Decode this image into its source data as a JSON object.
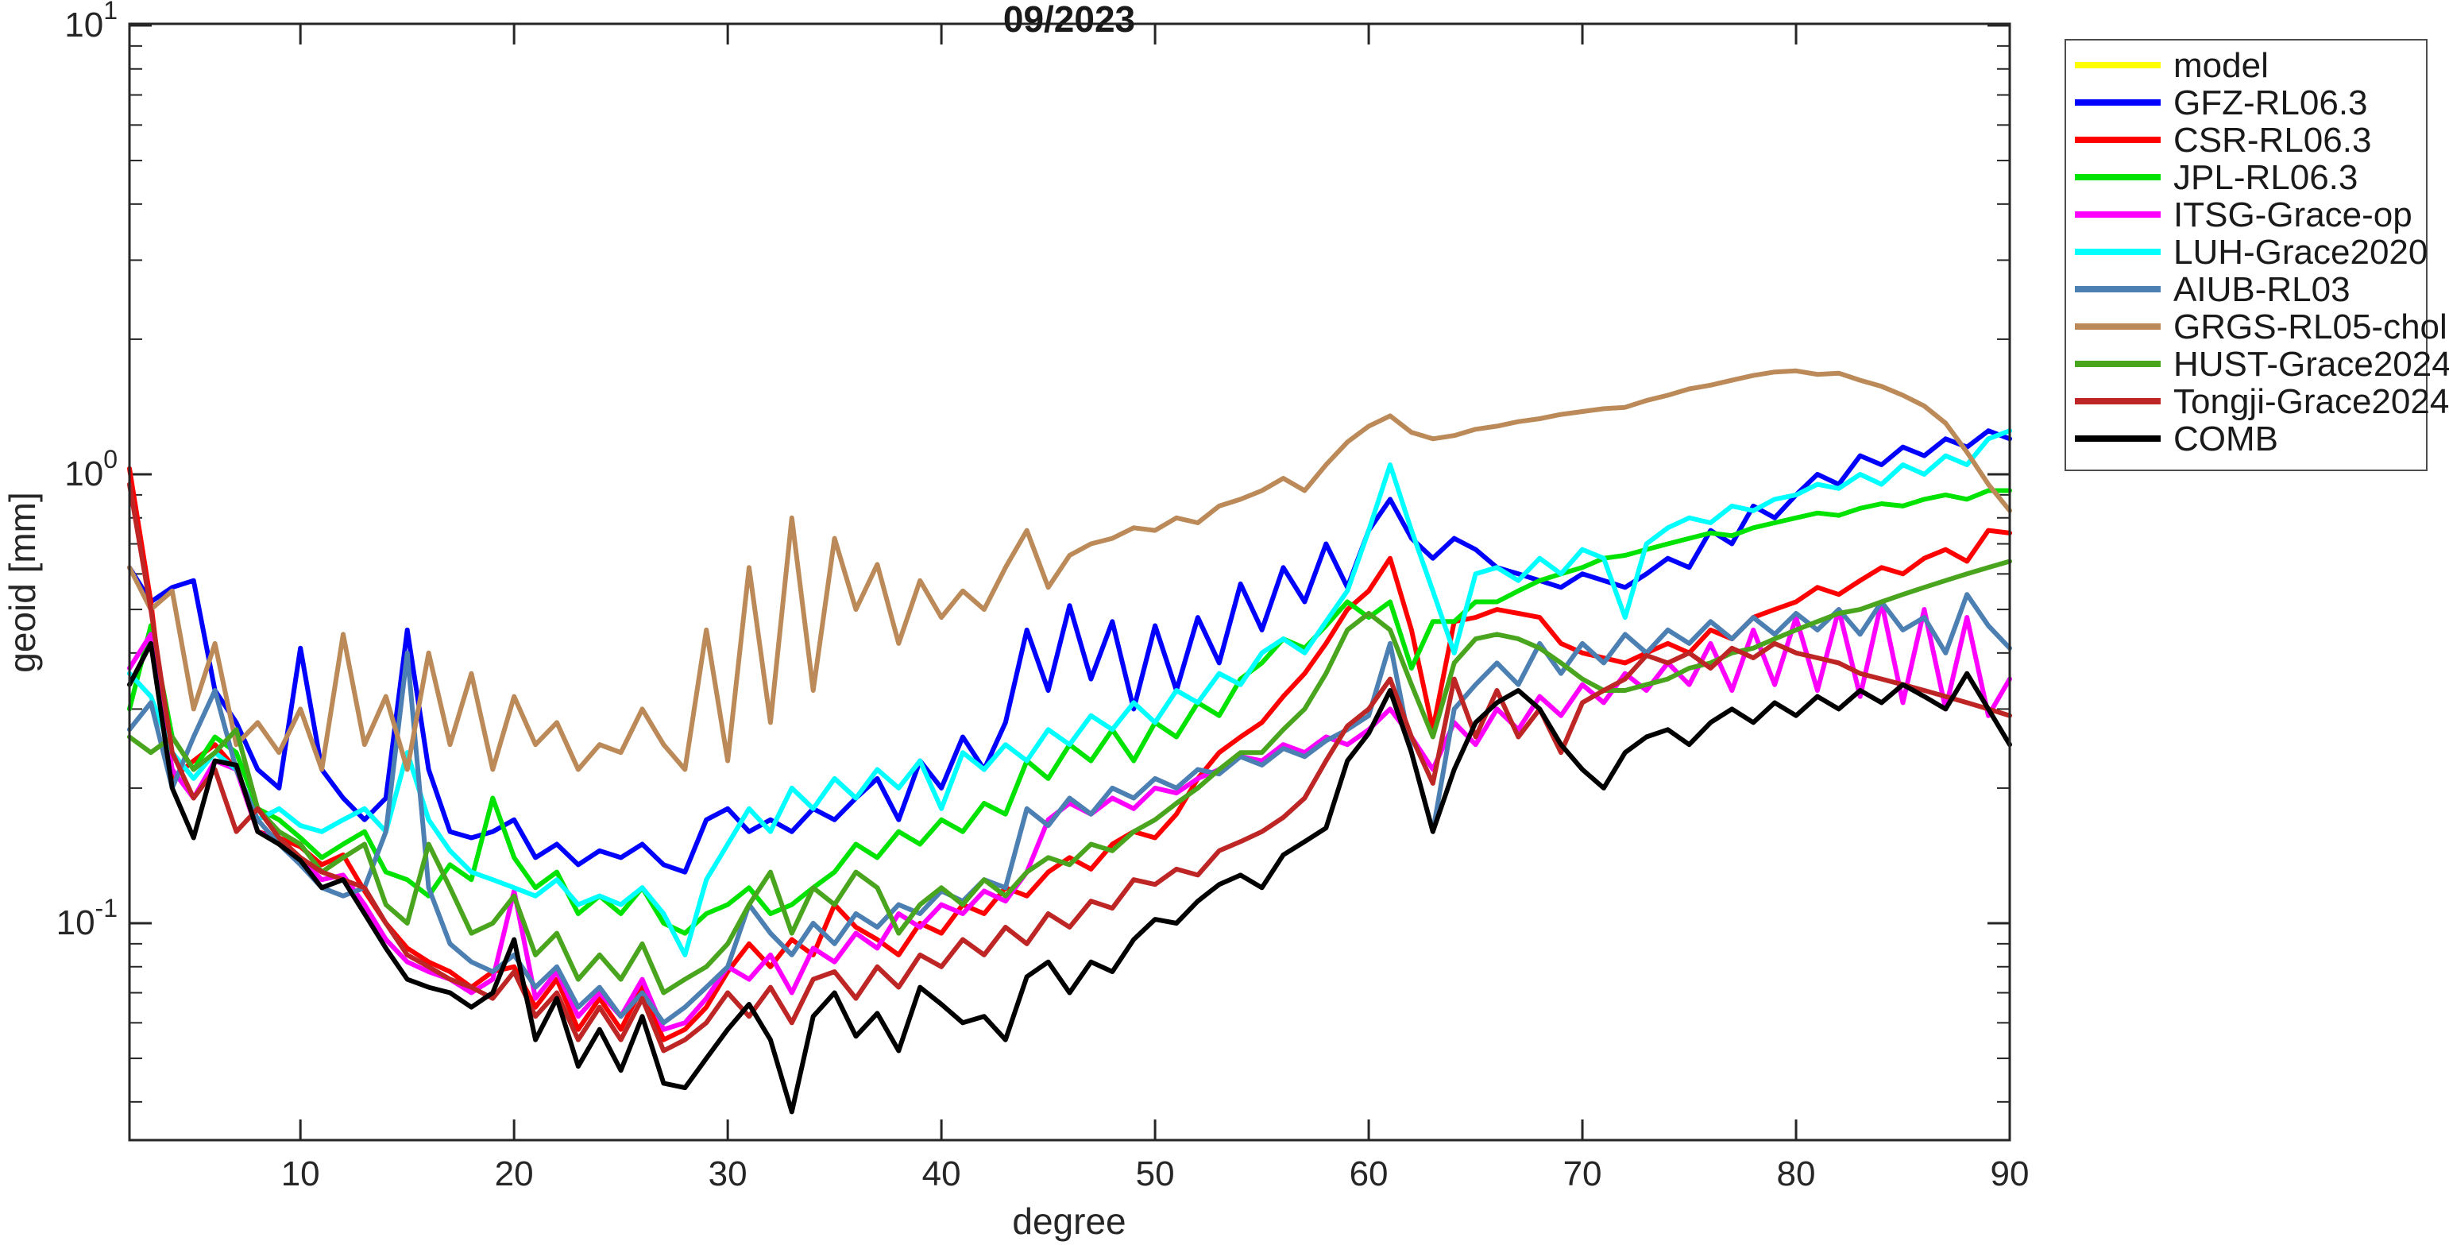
{
  "figure": {
    "title": "09/2023",
    "xlabel": "degree",
    "ylabel": "geoid [mm]"
  },
  "axes": {
    "x_ticks": [
      10,
      20,
      30,
      40,
      50,
      60,
      70,
      80,
      90
    ],
    "xlim": [
      2,
      90
    ],
    "y_scale": "log",
    "ylim": [
      0.033,
      10
    ],
    "y_major_ticks": [
      {
        "value": 10,
        "base": "10",
        "exp": "1"
      },
      {
        "value": 1,
        "base": "10",
        "exp": "0"
      },
      {
        "value": 0.1,
        "base": "10",
        "exp": "-1"
      }
    ],
    "grid": "off",
    "box": "on"
  },
  "legend": {
    "position": "outside-right-top",
    "entries": [
      "model",
      "GFZ-RL06.3",
      "CSR-RL06.3",
      "JPL-RL06.3",
      "ITSG-Grace-op",
      "LUH-Grace2020",
      "AIUB-RL03",
      "GRGS-RL05-chol",
      "HUST-Grace2024",
      "Tongji-Grace2024",
      "COMB"
    ]
  },
  "chart_data": {
    "type": "line",
    "title": "09/2023",
    "xlabel": "degree",
    "ylabel": "geoid [mm]",
    "x_start": 2,
    "x_step": 1,
    "x_end": 90,
    "series": [
      {
        "name": "model",
        "color": "#FFFF00",
        "visible_in_plot": false,
        "values": []
      },
      {
        "name": "GFZ-RL06.3",
        "color": "#0000FF",
        "values": [
          0.62,
          0.52,
          0.56,
          0.58,
          0.33,
          0.28,
          0.22,
          0.2,
          0.41,
          0.22,
          0.19,
          0.17,
          0.19,
          0.45,
          0.22,
          0.16,
          0.155,
          0.16,
          0.17,
          0.14,
          0.15,
          0.135,
          0.145,
          0.14,
          0.15,
          0.135,
          0.13,
          0.17,
          0.18,
          0.16,
          0.17,
          0.16,
          0.18,
          0.17,
          0.19,
          0.21,
          0.17,
          0.23,
          0.2,
          0.26,
          0.22,
          0.28,
          0.45,
          0.33,
          0.51,
          0.35,
          0.47,
          0.3,
          0.46,
          0.33,
          0.48,
          0.38,
          0.57,
          0.45,
          0.62,
          0.52,
          0.7,
          0.56,
          0.75,
          0.88,
          0.72,
          0.65,
          0.72,
          0.68,
          0.62,
          0.6,
          0.58,
          0.56,
          0.6,
          0.58,
          0.56,
          0.6,
          0.65,
          0.62,
          0.75,
          0.7,
          0.85,
          0.8,
          0.9,
          1.0,
          0.95,
          1.1,
          1.05,
          1.15,
          1.1,
          1.2,
          1.15,
          1.25,
          1.2
        ]
      },
      {
        "name": "CSR-RL06.3",
        "color": "#FF0000",
        "values": [
          1.03,
          0.52,
          0.21,
          0.23,
          0.25,
          0.22,
          0.16,
          0.155,
          0.148,
          0.135,
          0.142,
          0.118,
          0.1,
          0.088,
          0.082,
          0.078,
          0.072,
          0.078,
          0.08,
          0.065,
          0.075,
          0.058,
          0.068,
          0.058,
          0.072,
          0.055,
          0.058,
          0.065,
          0.078,
          0.09,
          0.08,
          0.092,
          0.085,
          0.11,
          0.098,
          0.092,
          0.085,
          0.1,
          0.095,
          0.11,
          0.105,
          0.12,
          0.115,
          0.13,
          0.14,
          0.132,
          0.15,
          0.16,
          0.155,
          0.175,
          0.21,
          0.24,
          0.26,
          0.28,
          0.32,
          0.36,
          0.42,
          0.5,
          0.55,
          0.65,
          0.45,
          0.27,
          0.47,
          0.48,
          0.5,
          0.49,
          0.48,
          0.42,
          0.4,
          0.39,
          0.38,
          0.4,
          0.42,
          0.4,
          0.45,
          0.43,
          0.48,
          0.5,
          0.52,
          0.56,
          0.54,
          0.58,
          0.62,
          0.6,
          0.65,
          0.68,
          0.64,
          0.75,
          0.74
        ]
      },
      {
        "name": "JPL-RL06.3",
        "color": "#00E300",
        "values": [
          0.3,
          0.46,
          0.26,
          0.22,
          0.26,
          0.24,
          0.18,
          0.17,
          0.155,
          0.14,
          0.15,
          0.16,
          0.13,
          0.125,
          0.115,
          0.135,
          0.125,
          0.19,
          0.14,
          0.12,
          0.13,
          0.105,
          0.115,
          0.105,
          0.12,
          0.1,
          0.095,
          0.105,
          0.11,
          0.12,
          0.105,
          0.11,
          0.12,
          0.13,
          0.15,
          0.14,
          0.16,
          0.15,
          0.17,
          0.16,
          0.185,
          0.175,
          0.23,
          0.21,
          0.25,
          0.23,
          0.27,
          0.23,
          0.28,
          0.26,
          0.31,
          0.29,
          0.35,
          0.38,
          0.43,
          0.41,
          0.46,
          0.52,
          0.48,
          0.52,
          0.37,
          0.47,
          0.47,
          0.52,
          0.52,
          0.55,
          0.58,
          0.6,
          0.62,
          0.65,
          0.66,
          0.68,
          0.7,
          0.72,
          0.74,
          0.73,
          0.76,
          0.78,
          0.8,
          0.82,
          0.81,
          0.84,
          0.86,
          0.85,
          0.88,
          0.9,
          0.88,
          0.92,
          0.92
        ]
      },
      {
        "name": "ITSG-Grace-op",
        "color": "#FF00FF",
        "values": [
          0.37,
          0.44,
          0.22,
          0.19,
          0.23,
          0.22,
          0.16,
          0.152,
          0.14,
          0.125,
          0.128,
          0.11,
          0.092,
          0.082,
          0.078,
          0.075,
          0.07,
          0.075,
          0.118,
          0.068,
          0.078,
          0.062,
          0.07,
          0.062,
          0.075,
          0.058,
          0.06,
          0.068,
          0.08,
          0.075,
          0.085,
          0.07,
          0.088,
          0.082,
          0.095,
          0.088,
          0.105,
          0.098,
          0.11,
          0.105,
          0.118,
          0.112,
          0.13,
          0.17,
          0.185,
          0.175,
          0.19,
          0.18,
          0.2,
          0.195,
          0.21,
          0.22,
          0.235,
          0.23,
          0.25,
          0.24,
          0.26,
          0.25,
          0.27,
          0.3,
          0.26,
          0.22,
          0.28,
          0.25,
          0.3,
          0.27,
          0.32,
          0.29,
          0.34,
          0.31,
          0.36,
          0.33,
          0.38,
          0.34,
          0.42,
          0.33,
          0.45,
          0.34,
          0.48,
          0.33,
          0.5,
          0.32,
          0.52,
          0.31,
          0.5,
          0.3,
          0.48,
          0.29,
          0.35
        ]
      },
      {
        "name": "LUH-Grace2020",
        "color": "#00FFFF",
        "values": [
          0.36,
          0.32,
          0.24,
          0.21,
          0.24,
          0.22,
          0.17,
          0.18,
          0.165,
          0.16,
          0.17,
          0.18,
          0.16,
          0.24,
          0.17,
          0.145,
          0.13,
          0.125,
          0.12,
          0.115,
          0.125,
          0.11,
          0.115,
          0.11,
          0.12,
          0.105,
          0.085,
          0.125,
          0.15,
          0.18,
          0.16,
          0.2,
          0.18,
          0.21,
          0.19,
          0.22,
          0.2,
          0.23,
          0.18,
          0.24,
          0.22,
          0.25,
          0.23,
          0.27,
          0.25,
          0.29,
          0.27,
          0.31,
          0.28,
          0.33,
          0.31,
          0.36,
          0.34,
          0.4,
          0.43,
          0.4,
          0.47,
          0.55,
          0.75,
          1.05,
          0.75,
          0.55,
          0.4,
          0.6,
          0.62,
          0.58,
          0.65,
          0.6,
          0.68,
          0.65,
          0.48,
          0.7,
          0.76,
          0.8,
          0.78,
          0.85,
          0.83,
          0.88,
          0.9,
          0.95,
          0.93,
          1.0,
          0.95,
          1.05,
          1.0,
          1.1,
          1.05,
          1.2,
          1.25
        ]
      },
      {
        "name": "AIUB-RL03",
        "color": "#4C7FB2",
        "values": [
          0.27,
          0.31,
          0.2,
          0.26,
          0.33,
          0.22,
          0.17,
          0.15,
          0.135,
          0.12,
          0.115,
          0.12,
          0.16,
          0.4,
          0.12,
          0.09,
          0.082,
          0.078,
          0.085,
          0.072,
          0.08,
          0.065,
          0.072,
          0.062,
          0.07,
          0.06,
          0.065,
          0.072,
          0.08,
          0.11,
          0.095,
          0.085,
          0.1,
          0.09,
          0.105,
          0.098,
          0.11,
          0.105,
          0.118,
          0.112,
          0.125,
          0.12,
          0.18,
          0.165,
          0.19,
          0.175,
          0.2,
          0.19,
          0.21,
          0.2,
          0.22,
          0.215,
          0.235,
          0.225,
          0.245,
          0.235,
          0.255,
          0.27,
          0.29,
          0.42,
          0.24,
          0.16,
          0.3,
          0.34,
          0.38,
          0.34,
          0.42,
          0.36,
          0.42,
          0.38,
          0.44,
          0.4,
          0.45,
          0.42,
          0.47,
          0.43,
          0.48,
          0.44,
          0.49,
          0.45,
          0.5,
          0.44,
          0.52,
          0.45,
          0.48,
          0.4,
          0.54,
          0.46,
          0.41
        ]
      },
      {
        "name": "GRGS-RL05-chol",
        "color": "#BB8A58",
        "values": [
          0.62,
          0.5,
          0.55,
          0.3,
          0.42,
          0.25,
          0.28,
          0.24,
          0.3,
          0.22,
          0.44,
          0.25,
          0.32,
          0.22,
          0.4,
          0.25,
          0.36,
          0.22,
          0.32,
          0.25,
          0.28,
          0.22,
          0.25,
          0.24,
          0.3,
          0.25,
          0.22,
          0.45,
          0.23,
          0.62,
          0.28,
          0.8,
          0.33,
          0.72,
          0.5,
          0.63,
          0.42,
          0.58,
          0.48,
          0.55,
          0.5,
          0.62,
          0.75,
          0.56,
          0.66,
          0.7,
          0.72,
          0.76,
          0.75,
          0.8,
          0.78,
          0.85,
          0.88,
          0.92,
          0.98,
          0.92,
          1.05,
          1.18,
          1.28,
          1.35,
          1.24,
          1.2,
          1.22,
          1.26,
          1.28,
          1.31,
          1.33,
          1.36,
          1.38,
          1.4,
          1.41,
          1.46,
          1.5,
          1.55,
          1.58,
          1.62,
          1.66,
          1.69,
          1.7,
          1.67,
          1.68,
          1.62,
          1.57,
          1.5,
          1.42,
          1.3,
          1.12,
          0.95,
          0.83
        ]
      },
      {
        "name": "HUST-Grace2024",
        "color": "#4AA51E",
        "values": [
          0.26,
          0.24,
          0.26,
          0.22,
          0.24,
          0.27,
          0.18,
          0.16,
          0.15,
          0.13,
          0.14,
          0.15,
          0.11,
          0.1,
          0.15,
          0.12,
          0.095,
          0.1,
          0.115,
          0.085,
          0.095,
          0.075,
          0.085,
          0.075,
          0.09,
          0.07,
          0.075,
          0.08,
          0.09,
          0.11,
          0.13,
          0.095,
          0.12,
          0.11,
          0.13,
          0.12,
          0.095,
          0.11,
          0.12,
          0.11,
          0.125,
          0.115,
          0.13,
          0.14,
          0.135,
          0.15,
          0.145,
          0.16,
          0.17,
          0.185,
          0.2,
          0.22,
          0.24,
          0.24,
          0.27,
          0.3,
          0.36,
          0.45,
          0.49,
          0.45,
          0.34,
          0.26,
          0.38,
          0.43,
          0.44,
          0.43,
          0.41,
          0.38,
          0.35,
          0.33,
          0.33,
          0.34,
          0.35,
          0.37,
          0.38,
          0.4,
          0.41,
          0.43,
          0.45,
          0.47,
          0.49,
          0.5,
          0.52,
          0.54,
          0.56,
          0.58,
          0.6,
          0.62,
          0.64
        ]
      },
      {
        "name": "Tongji-Grace2024",
        "color": "#BE2625",
        "values": [
          0.95,
          0.5,
          0.24,
          0.19,
          0.22,
          0.16,
          0.18,
          0.155,
          0.14,
          0.13,
          0.125,
          0.12,
          0.1,
          0.085,
          0.08,
          0.075,
          0.072,
          0.068,
          0.078,
          0.062,
          0.07,
          0.055,
          0.065,
          0.055,
          0.068,
          0.052,
          0.055,
          0.06,
          0.07,
          0.062,
          0.072,
          0.06,
          0.075,
          0.078,
          0.068,
          0.08,
          0.072,
          0.085,
          0.08,
          0.092,
          0.085,
          0.098,
          0.09,
          0.105,
          0.098,
          0.112,
          0.108,
          0.125,
          0.122,
          0.132,
          0.128,
          0.145,
          0.152,
          0.16,
          0.172,
          0.19,
          0.23,
          0.275,
          0.3,
          0.35,
          0.26,
          0.205,
          0.35,
          0.26,
          0.33,
          0.26,
          0.3,
          0.24,
          0.31,
          0.33,
          0.35,
          0.395,
          0.38,
          0.4,
          0.37,
          0.41,
          0.39,
          0.42,
          0.4,
          0.39,
          0.38,
          0.36,
          0.35,
          0.34,
          0.33,
          0.32,
          0.31,
          0.3,
          0.29
        ]
      },
      {
        "name": "COMB",
        "color": "#000000",
        "values": [
          0.34,
          0.42,
          0.2,
          0.155,
          0.23,
          0.225,
          0.16,
          0.15,
          0.138,
          0.12,
          0.125,
          0.105,
          0.088,
          0.075,
          0.072,
          0.07,
          0.065,
          0.07,
          0.092,
          0.055,
          0.068,
          0.048,
          0.058,
          0.047,
          0.062,
          0.044,
          0.043,
          0.05,
          0.058,
          0.066,
          0.055,
          0.038,
          0.062,
          0.07,
          0.056,
          0.063,
          0.052,
          0.072,
          0.066,
          0.06,
          0.062,
          0.055,
          0.076,
          0.082,
          0.07,
          0.082,
          0.078,
          0.092,
          0.102,
          0.1,
          0.112,
          0.122,
          0.128,
          0.12,
          0.142,
          0.152,
          0.163,
          0.23,
          0.265,
          0.33,
          0.24,
          0.16,
          0.22,
          0.28,
          0.31,
          0.33,
          0.3,
          0.25,
          0.22,
          0.2,
          0.24,
          0.26,
          0.27,
          0.25,
          0.28,
          0.3,
          0.28,
          0.31,
          0.29,
          0.32,
          0.3,
          0.33,
          0.31,
          0.34,
          0.32,
          0.3,
          0.36,
          0.3,
          0.25
        ]
      }
    ]
  }
}
